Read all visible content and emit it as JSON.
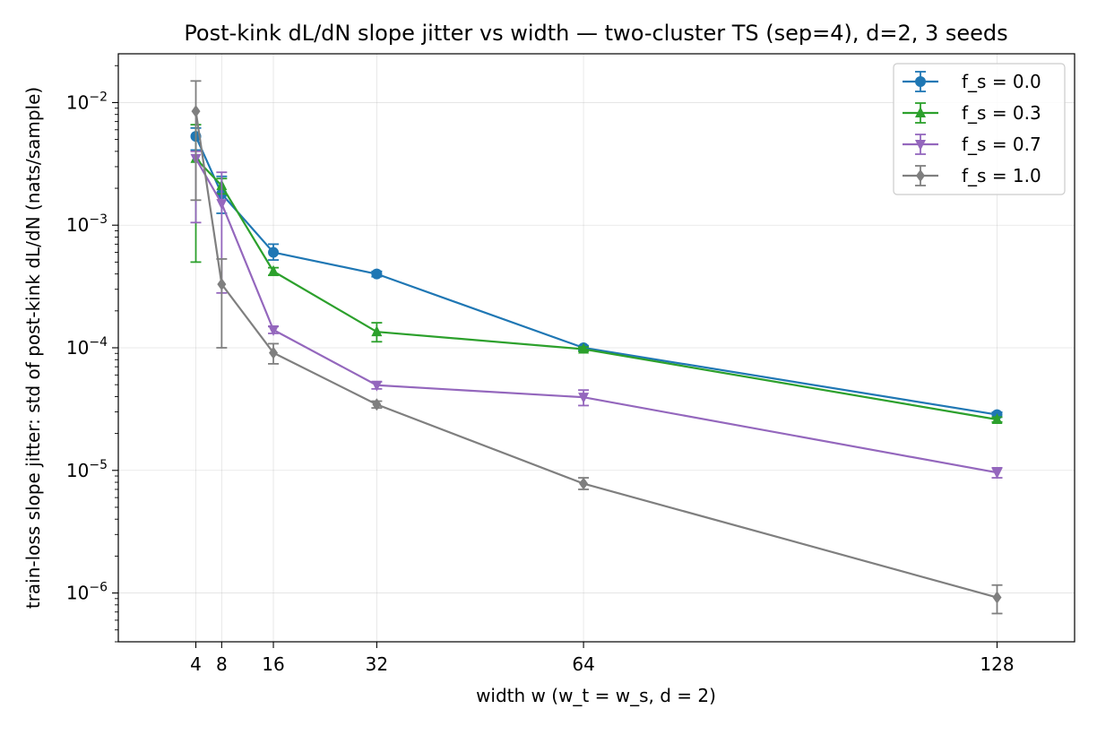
{
  "chart_data": {
    "type": "line",
    "title": "Post-kink dL/dN slope jitter vs width — two-cluster TS (sep=4), d=2, 3 seeds",
    "xlabel": "width  w  (w_t = w_s, d = 2)",
    "ylabel": "train-loss slope jitter: std of post-kink dL/dN (nats/sample)",
    "x_scale": "linear",
    "y_scale": "log",
    "xlim": [
      -8,
      140
    ],
    "ylim": [
      4e-07,
      0.025
    ],
    "x_ticks": [
      4,
      8,
      16,
      32,
      64,
      128
    ],
    "x_tick_labels": [
      "4",
      "8",
      "16",
      "32",
      "64",
      "128"
    ],
    "y_ticks": [
      1e-06,
      1e-05,
      0.0001,
      0.001,
      0.01
    ],
    "y_tick_labels": [
      {
        "base": "10",
        "exp": "−6"
      },
      {
        "base": "10",
        "exp": "−5"
      },
      {
        "base": "10",
        "exp": "−4"
      },
      {
        "base": "10",
        "exp": "−3"
      },
      {
        "base": "10",
        "exp": "−2"
      }
    ],
    "grid": true,
    "legend_position": "top-right",
    "x": [
      4,
      8,
      16,
      32,
      64,
      128
    ],
    "series": [
      {
        "name": "f_s = 0.0",
        "color": "#1f77b4",
        "marker": "circle",
        "values": [
          0.0053,
          0.0018,
          0.0006,
          0.0004,
          0.0001,
          2.85e-05
        ],
        "err_low": [
          0.0041,
          0.00125,
          0.00052,
          0.00038,
          9.6e-05,
          2.72e-05
        ],
        "err_high": [
          0.0062,
          0.0025,
          0.0007,
          0.00042,
          0.000104,
          2.98e-05
        ]
      },
      {
        "name": "f_s = 0.3",
        "color": "#2ca02c",
        "marker": "triangle-up",
        "values": [
          0.0035,
          0.0021,
          0.00042,
          0.000135,
          9.75e-05,
          2.6e-05
        ],
        "err_low": [
          0.0005,
          0.0018,
          0.00039,
          0.000112,
          9.35e-05,
          2.48e-05
        ],
        "err_high": [
          0.0066,
          0.0024,
          0.00045,
          0.00016,
          0.0001015,
          2.72e-05
        ]
      },
      {
        "name": "f_s = 0.7",
        "color": "#9467bd",
        "marker": "triangle-down",
        "values": [
          0.0035,
          0.0015,
          0.00014,
          4.95e-05,
          3.95e-05,
          9.6e-06
        ],
        "err_low": [
          0.00105,
          0.00028,
          0.000131,
          4.62e-05,
          3.38e-05,
          8.7e-06
        ],
        "err_high": [
          0.004,
          0.0027,
          0.000149,
          5.28e-05,
          4.52e-05,
          1.05e-05
        ]
      },
      {
        "name": "f_s = 1.0",
        "color": "#7f7f7f",
        "marker": "diamond",
        "values": [
          0.0085,
          0.00033,
          9.1e-05,
          3.45e-05,
          7.8e-06,
          9.2e-07
        ],
        "err_low": [
          0.0016,
          0.0001,
          7.4e-05,
          3.23e-05,
          7e-06,
          6.8e-07
        ],
        "err_high": [
          0.015,
          0.00053,
          0.000108,
          3.67e-05,
          8.7e-06,
          1.16e-06
        ]
      }
    ]
  }
}
